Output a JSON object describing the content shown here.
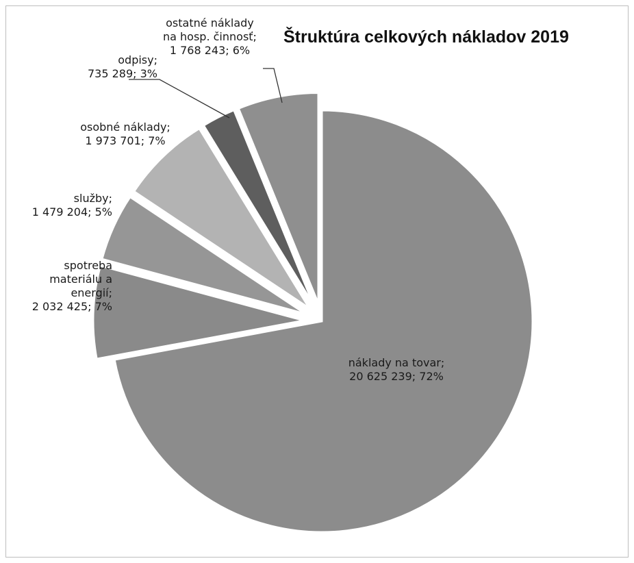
{
  "chart_data": {
    "type": "pie",
    "title": "Štruktúra celkových nákladov 2019",
    "slices": [
      {
        "name": "náklady na tovar",
        "value": 20625239,
        "percent": 72,
        "label_lines": [
          "náklady na tovar;",
          "20 625 239; 72%"
        ],
        "color": "#8c8c8c",
        "exploded": false
      },
      {
        "name": "spotreba materiálu a energií",
        "value": 2032425,
        "percent": 7,
        "label_lines": [
          "spotreba",
          "materiálu a",
          "energií;",
          "2 032 425; 7%"
        ],
        "color": "#8a8a8a",
        "exploded": true
      },
      {
        "name": "služby",
        "value": 1479204,
        "percent": 5,
        "label_lines": [
          "služby;",
          "1 479 204; 5%"
        ],
        "color": "#969696",
        "exploded": true
      },
      {
        "name": "osobné náklady",
        "value": 1973701,
        "percent": 7,
        "label_lines": [
          "osobné náklady;",
          "1 973 701; 7%"
        ],
        "color": "#b3b3b3",
        "exploded": true
      },
      {
        "name": "odpisy",
        "value": 735289,
        "percent": 3,
        "label_lines": [
          "odpisy;",
          "735 289; 3%"
        ],
        "color": "#5e5e5e",
        "exploded": true
      },
      {
        "name": "ostatné náklady na hosp. činnosť",
        "value": 1768243,
        "percent": 6,
        "label_lines": [
          "ostatné náklady",
          "na hosp. činnosť;",
          "1 768 243; 6%"
        ],
        "color": "#8f8f8f",
        "exploded": true
      }
    ],
    "legend": "none"
  }
}
